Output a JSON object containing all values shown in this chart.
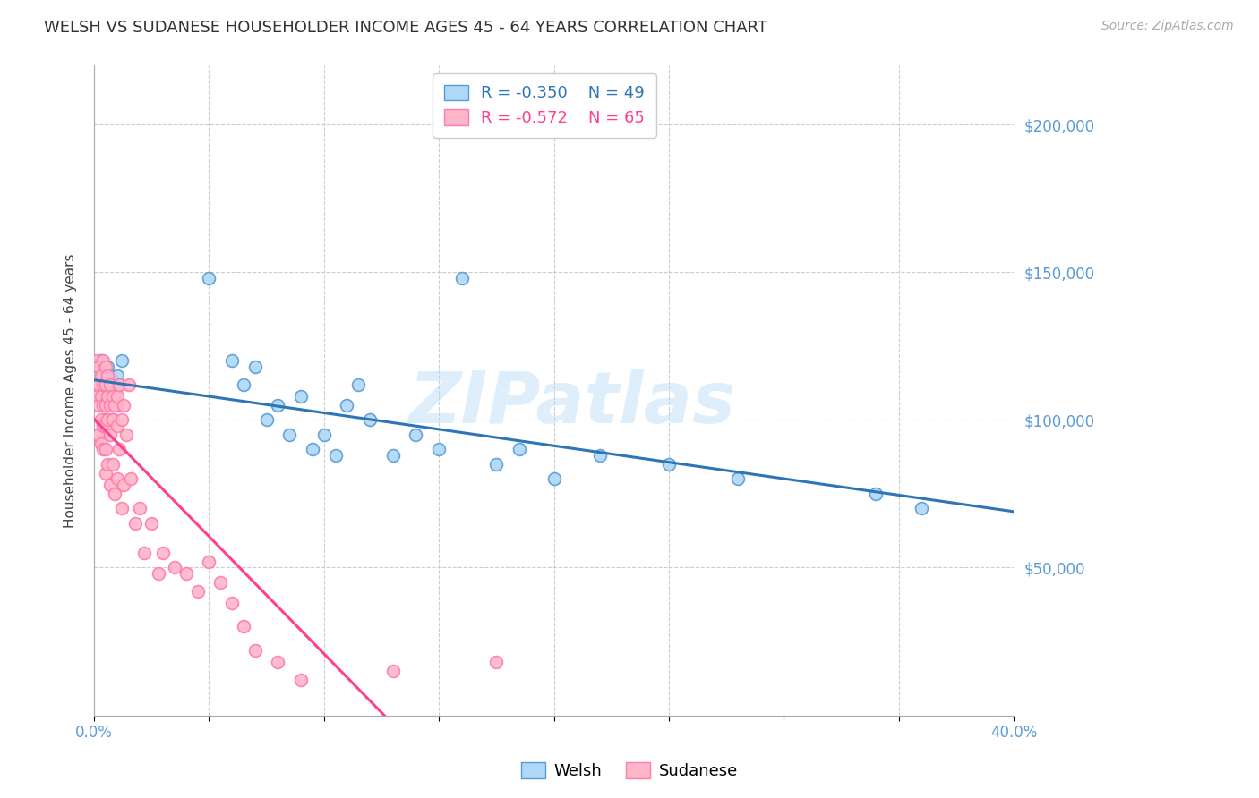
{
  "title": "WELSH VS SUDANESE HOUSEHOLDER INCOME AGES 45 - 64 YEARS CORRELATION CHART",
  "source": "Source: ZipAtlas.com",
  "ylabel_label": "Householder Income Ages 45 - 64 years",
  "xlim": [
    0.0,
    0.4
  ],
  "ylim": [
    0,
    220000
  ],
  "yticks": [
    0,
    50000,
    100000,
    150000,
    200000
  ],
  "xticks_positions": [
    0.0,
    0.05,
    0.1,
    0.15,
    0.2,
    0.25,
    0.3,
    0.35,
    0.4
  ],
  "title_fontsize": 13,
  "axis_label_fontsize": 11,
  "tick_label_fontsize": 12,
  "source_fontsize": 10,
  "legend_r_welsh": "-0.350",
  "legend_n_welsh": "49",
  "legend_r_sudanese": "-0.572",
  "legend_n_sudanese": "65",
  "welsh_color": "#ADD8F7",
  "sudanese_color": "#FFB6C8",
  "welsh_edge_color": "#5B9BD5",
  "sudanese_edge_color": "#FF7BAC",
  "welsh_line_color": "#2E75B6",
  "sudanese_line_color": "#FF4090",
  "axis_color": "#5B9BD5",
  "grid_color": "#CCCCCC",
  "background_color": "#FFFFFF",
  "watermark_text": "ZIPatlas",
  "welsh_x": [
    0.001,
    0.002,
    0.002,
    0.003,
    0.003,
    0.004,
    0.004,
    0.004,
    0.005,
    0.005,
    0.005,
    0.006,
    0.006,
    0.006,
    0.007,
    0.007,
    0.008,
    0.008,
    0.009,
    0.01,
    0.01,
    0.011,
    0.012,
    0.05,
    0.06,
    0.065,
    0.07,
    0.075,
    0.08,
    0.085,
    0.09,
    0.095,
    0.1,
    0.105,
    0.11,
    0.115,
    0.12,
    0.13,
    0.14,
    0.15,
    0.16,
    0.175,
    0.185,
    0.2,
    0.22,
    0.25,
    0.28,
    0.34,
    0.36
  ],
  "welsh_y": [
    115000,
    118000,
    112000,
    120000,
    108000,
    115000,
    110000,
    105000,
    113000,
    108000,
    100000,
    118000,
    112000,
    105000,
    115000,
    108000,
    110000,
    100000,
    108000,
    115000,
    105000,
    112000,
    120000,
    148000,
    120000,
    112000,
    118000,
    100000,
    105000,
    95000,
    108000,
    90000,
    95000,
    88000,
    105000,
    112000,
    100000,
    88000,
    95000,
    90000,
    148000,
    85000,
    90000,
    80000,
    88000,
    85000,
    80000,
    75000,
    70000
  ],
  "sudanese_x": [
    0.001,
    0.001,
    0.001,
    0.002,
    0.002,
    0.002,
    0.002,
    0.003,
    0.003,
    0.003,
    0.003,
    0.004,
    0.004,
    0.004,
    0.004,
    0.004,
    0.005,
    0.005,
    0.005,
    0.005,
    0.005,
    0.005,
    0.006,
    0.006,
    0.006,
    0.006,
    0.007,
    0.007,
    0.007,
    0.007,
    0.008,
    0.008,
    0.008,
    0.009,
    0.009,
    0.01,
    0.01,
    0.01,
    0.011,
    0.011,
    0.012,
    0.012,
    0.013,
    0.013,
    0.014,
    0.015,
    0.016,
    0.018,
    0.02,
    0.022,
    0.025,
    0.028,
    0.03,
    0.035,
    0.04,
    0.045,
    0.05,
    0.055,
    0.06,
    0.065,
    0.07,
    0.08,
    0.09,
    0.13,
    0.175
  ],
  "sudanese_y": [
    120000,
    108000,
    95000,
    118000,
    112000,
    105000,
    95000,
    115000,
    108000,
    100000,
    92000,
    120000,
    112000,
    105000,
    98000,
    90000,
    118000,
    112000,
    105000,
    98000,
    90000,
    82000,
    115000,
    108000,
    100000,
    85000,
    112000,
    105000,
    95000,
    78000,
    108000,
    100000,
    85000,
    105000,
    75000,
    108000,
    98000,
    80000,
    112000,
    90000,
    100000,
    70000,
    105000,
    78000,
    95000,
    112000,
    80000,
    65000,
    70000,
    55000,
    65000,
    48000,
    55000,
    50000,
    48000,
    42000,
    52000,
    45000,
    38000,
    30000,
    22000,
    18000,
    12000,
    15000,
    18000
  ]
}
